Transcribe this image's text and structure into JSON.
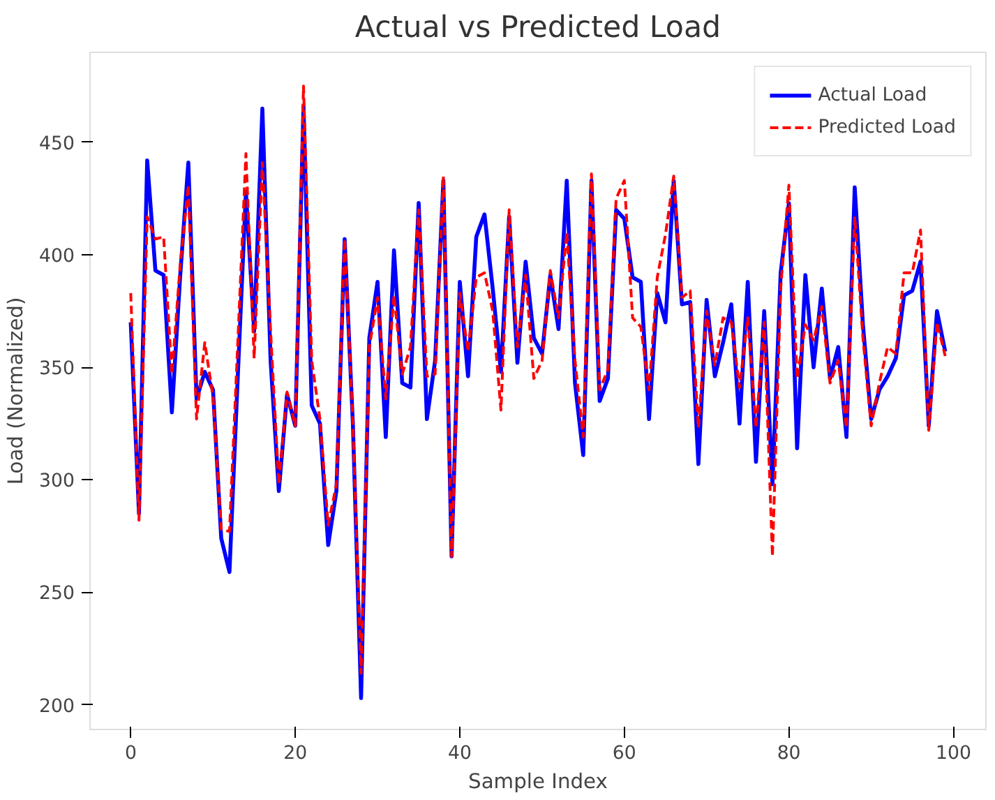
{
  "chart_data": {
    "type": "line",
    "title": "Actual vs Predicted Load",
    "xlabel": "Sample Index",
    "ylabel": "Load (Normalized)",
    "x": [
      0,
      1,
      2,
      3,
      4,
      5,
      6,
      7,
      8,
      9,
      10,
      11,
      12,
      13,
      14,
      15,
      16,
      17,
      18,
      19,
      20,
      21,
      22,
      23,
      24,
      25,
      26,
      27,
      28,
      29,
      30,
      31,
      32,
      33,
      34,
      35,
      36,
      37,
      38,
      39,
      40,
      41,
      42,
      43,
      44,
      45,
      46,
      47,
      48,
      49,
      50,
      51,
      52,
      53,
      54,
      55,
      56,
      57,
      58,
      59,
      60,
      61,
      62,
      63,
      64,
      65,
      66,
      67,
      68,
      69,
      70,
      71,
      72,
      73,
      74,
      75,
      76,
      77,
      78,
      79,
      80,
      81,
      82,
      83,
      84,
      85,
      86,
      87,
      88,
      89,
      90,
      91,
      92,
      93,
      94,
      95,
      96,
      97,
      98,
      99
    ],
    "series": [
      {
        "name": "Actual Load",
        "color": "#0000ff",
        "line_style": "solid",
        "values": [
          370,
          285,
          442,
          393,
          391,
          330,
          390,
          441,
          336,
          348,
          340,
          274,
          259,
          345,
          428,
          366,
          465,
          353,
          295,
          338,
          324,
          466,
          333,
          325,
          271,
          295,
          407,
          325,
          203,
          363,
          388,
          319,
          402,
          343,
          341,
          423,
          327,
          353,
          433,
          266,
          388,
          346,
          408,
          418,
          385,
          348,
          417,
          352,
          397,
          363,
          356,
          391,
          367,
          433,
          343,
          311,
          433,
          335,
          345,
          420,
          416,
          390,
          388,
          327,
          383,
          370,
          433,
          378,
          379,
          307,
          380,
          346,
          361,
          378,
          325,
          388,
          308,
          375,
          298,
          392,
          423,
          314,
          391,
          350,
          385,
          345,
          359,
          319,
          430,
          369,
          327,
          340,
          346,
          354,
          382,
          384,
          397,
          324,
          375,
          357
        ]
      },
      {
        "name": "Predicted Load",
        "color": "#ff0000",
        "line_style": "dashed",
        "values": [
          383,
          282,
          417,
          407,
          408,
          347,
          395,
          431,
          327,
          361,
          337,
          278,
          277,
          360,
          445,
          354,
          441,
          366,
          298,
          339,
          324,
          475,
          353,
          327,
          280,
          298,
          407,
          325,
          214,
          359,
          381,
          336,
          382,
          347,
          359,
          420,
          346,
          347,
          435,
          266,
          383,
          357,
          390,
          392,
          375,
          331,
          420,
          359,
          391,
          345,
          353,
          393,
          372,
          410,
          353,
          319,
          436,
          340,
          349,
          425,
          433,
          372,
          368,
          340,
          390,
          409,
          435,
          381,
          384,
          323,
          375,
          351,
          372,
          370,
          341,
          372,
          323,
          370,
          266,
          385,
          431,
          345,
          369,
          362,
          377,
          343,
          353,
          323,
          417,
          363,
          324,
          343,
          359,
          356,
          392,
          392,
          411,
          322,
          370,
          355
        ]
      }
    ],
    "xlim": [
      -4.95,
      103.95
    ],
    "ylim": [
      189,
      490
    ],
    "xticks": [
      0,
      20,
      40,
      60,
      80,
      100
    ],
    "yticks": [
      200,
      250,
      300,
      350,
      400,
      450
    ],
    "grid": false,
    "legend": "top right"
  }
}
